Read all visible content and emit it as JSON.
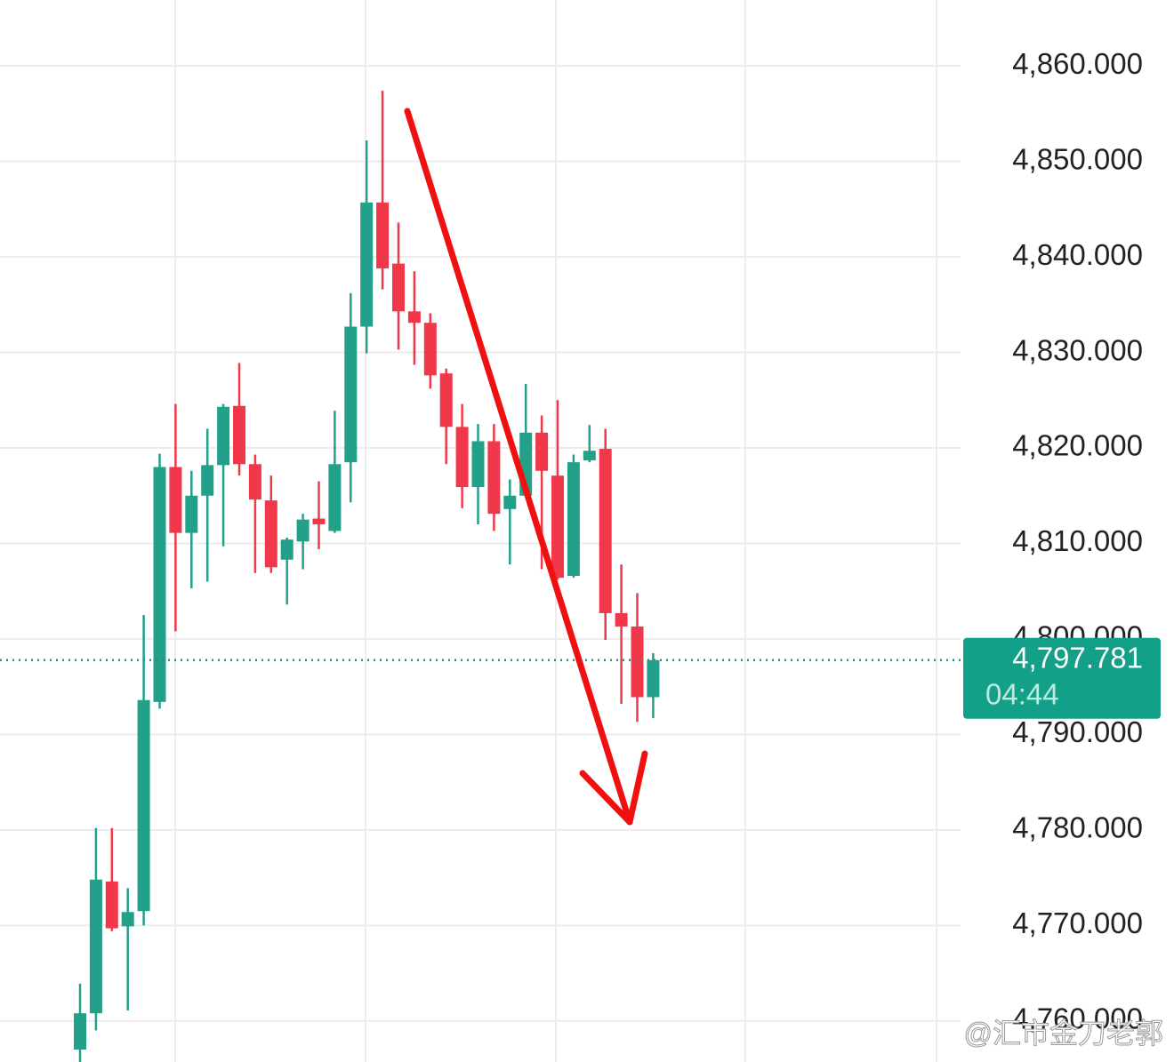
{
  "chart_data": {
    "type": "candlestick",
    "open": [
      4757,
      4760.8,
      4774.6,
      4769.9,
      4771.5,
      4793.4,
      4818,
      4811.1,
      4815,
      4818.2,
      4824.4,
      4818.3,
      4814.5,
      4808.3,
      4810.2,
      4812.6,
      4811.3,
      4818.5,
      4832.7,
      4845.7,
      4839.3,
      4834.3,
      4833.1,
      4827.8,
      4822.2,
      4815.9,
      4820.7,
      4813.6,
      4815,
      4821.6,
      4817.1,
      4806.6,
      4818.7,
      4819.9,
      4802.7,
      4801.3,
      4793.9
    ],
    "high": [
      4763.9,
      4780.2,
      4780.2,
      4773.9,
      4802.5,
      4819.4,
      4824.6,
      4817.6,
      4822,
      4824.6,
      4828.9,
      4819.3,
      4817.1,
      4810.6,
      4813.1,
      4816.5,
      4823.9,
      4836.2,
      4852.2,
      4857.4,
      4843.6,
      4838.5,
      4834.1,
      4828.3,
      4824.6,
      4822.5,
      4822.5,
      4816.7,
      4826.7,
      4823.4,
      4825,
      4819.3,
      4822.4,
      4822,
      4807.8,
      4804.8,
      4798.5
    ],
    "low": [
      4755,
      4759,
      4769.4,
      4761.1,
      4770,
      4792.7,
      4800.8,
      4805.3,
      4806,
      4809.7,
      4817.1,
      4806.9,
      4806.9,
      4803.6,
      4807.3,
      4809.4,
      4811.1,
      4814.3,
      4829.9,
      4836.6,
      4830.3,
      4828.7,
      4826.2,
      4818.3,
      4813.7,
      4812,
      4811.3,
      4807.8,
      4814.8,
      4807.3,
      4806.2,
      4806.4,
      4818.5,
      4799.9,
      4793.2,
      4791.3,
      4791.7
    ],
    "close": [
      4760.8,
      4774.8,
      4769.7,
      4771.4,
      4793.6,
      4818,
      4811.1,
      4815,
      4818.2,
      4824.3,
      4818.3,
      4814.6,
      4807.5,
      4810.4,
      4812.5,
      4812,
      4818.3,
      4832.7,
      4845.7,
      4838.8,
      4834.3,
      4833.1,
      4827.6,
      4822.2,
      4815.9,
      4820.7,
      4813.1,
      4815,
      4821.6,
      4817.6,
      4806.4,
      4818.5,
      4819.7,
      4802.7,
      4801.3,
      4793.9,
      4797.781
    ],
    "up_color": "#22a08a",
    "down_color": "#f0384a",
    "ylim": [
      4755.7,
      4866.9
    ],
    "yticks": [
      {
        "value": 4760,
        "label": "4,760.000"
      },
      {
        "value": 4770,
        "label": "4,770.000"
      },
      {
        "value": 4780,
        "label": "4,780.000"
      },
      {
        "value": 4790,
        "label": "4,790.000"
      },
      {
        "value": 4800,
        "label": "4,800.000"
      },
      {
        "value": 4810,
        "label": "4,810.000"
      },
      {
        "value": 4820,
        "label": "4,820.000"
      },
      {
        "value": 4830,
        "label": "4,830.000"
      },
      {
        "value": 4840,
        "label": "4,840.000"
      },
      {
        "value": 4850,
        "label": "4,850.000"
      },
      {
        "value": 4860,
        "label": "4,860.000"
      }
    ],
    "grid": true,
    "last_price": {
      "value": 4797.781,
      "label": "4,797.781"
    },
    "countdown": "04:44",
    "watermark": "@汇市金刀老郭"
  }
}
